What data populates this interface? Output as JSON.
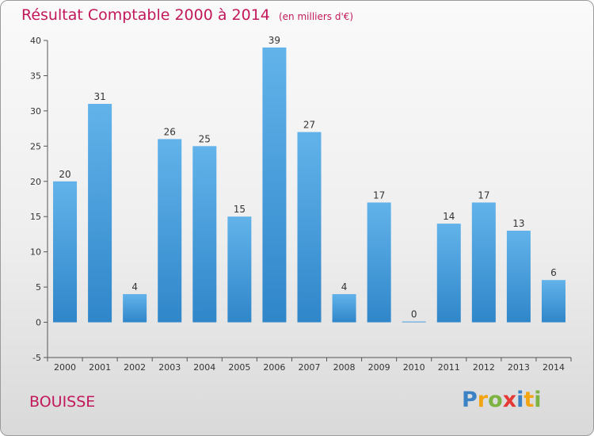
{
  "chart_data": {
    "type": "bar",
    "title": "Résultat Comptable 2000 à 2014",
    "subtitle": "(en milliers d'€)",
    "categories": [
      "2000",
      "2001",
      "2002",
      "2003",
      "2004",
      "2005",
      "2006",
      "2007",
      "2008",
      "2009",
      "2010",
      "2011",
      "2012",
      "2013",
      "2014"
    ],
    "values": [
      20,
      31,
      4,
      26,
      25,
      15,
      39,
      27,
      4,
      17,
      0,
      14,
      17,
      13,
      6
    ],
    "ylim": [
      -5,
      40
    ],
    "yticks": [
      -5,
      0,
      5,
      10,
      15,
      20,
      25,
      30,
      35,
      40
    ],
    "xlabel": "",
    "ylabel": "",
    "grid": false,
    "bar_color": "#3d9ee0"
  },
  "location": "BOUISSE",
  "logo": {
    "p": "P",
    "r": "r",
    "o": "o",
    "x": "x",
    "i1": "i",
    "t": "t",
    "i2": "i"
  },
  "colors": {
    "title": "#c2185b",
    "bar_top": "#62b3ea",
    "bar_bottom": "#2f86c9"
  }
}
